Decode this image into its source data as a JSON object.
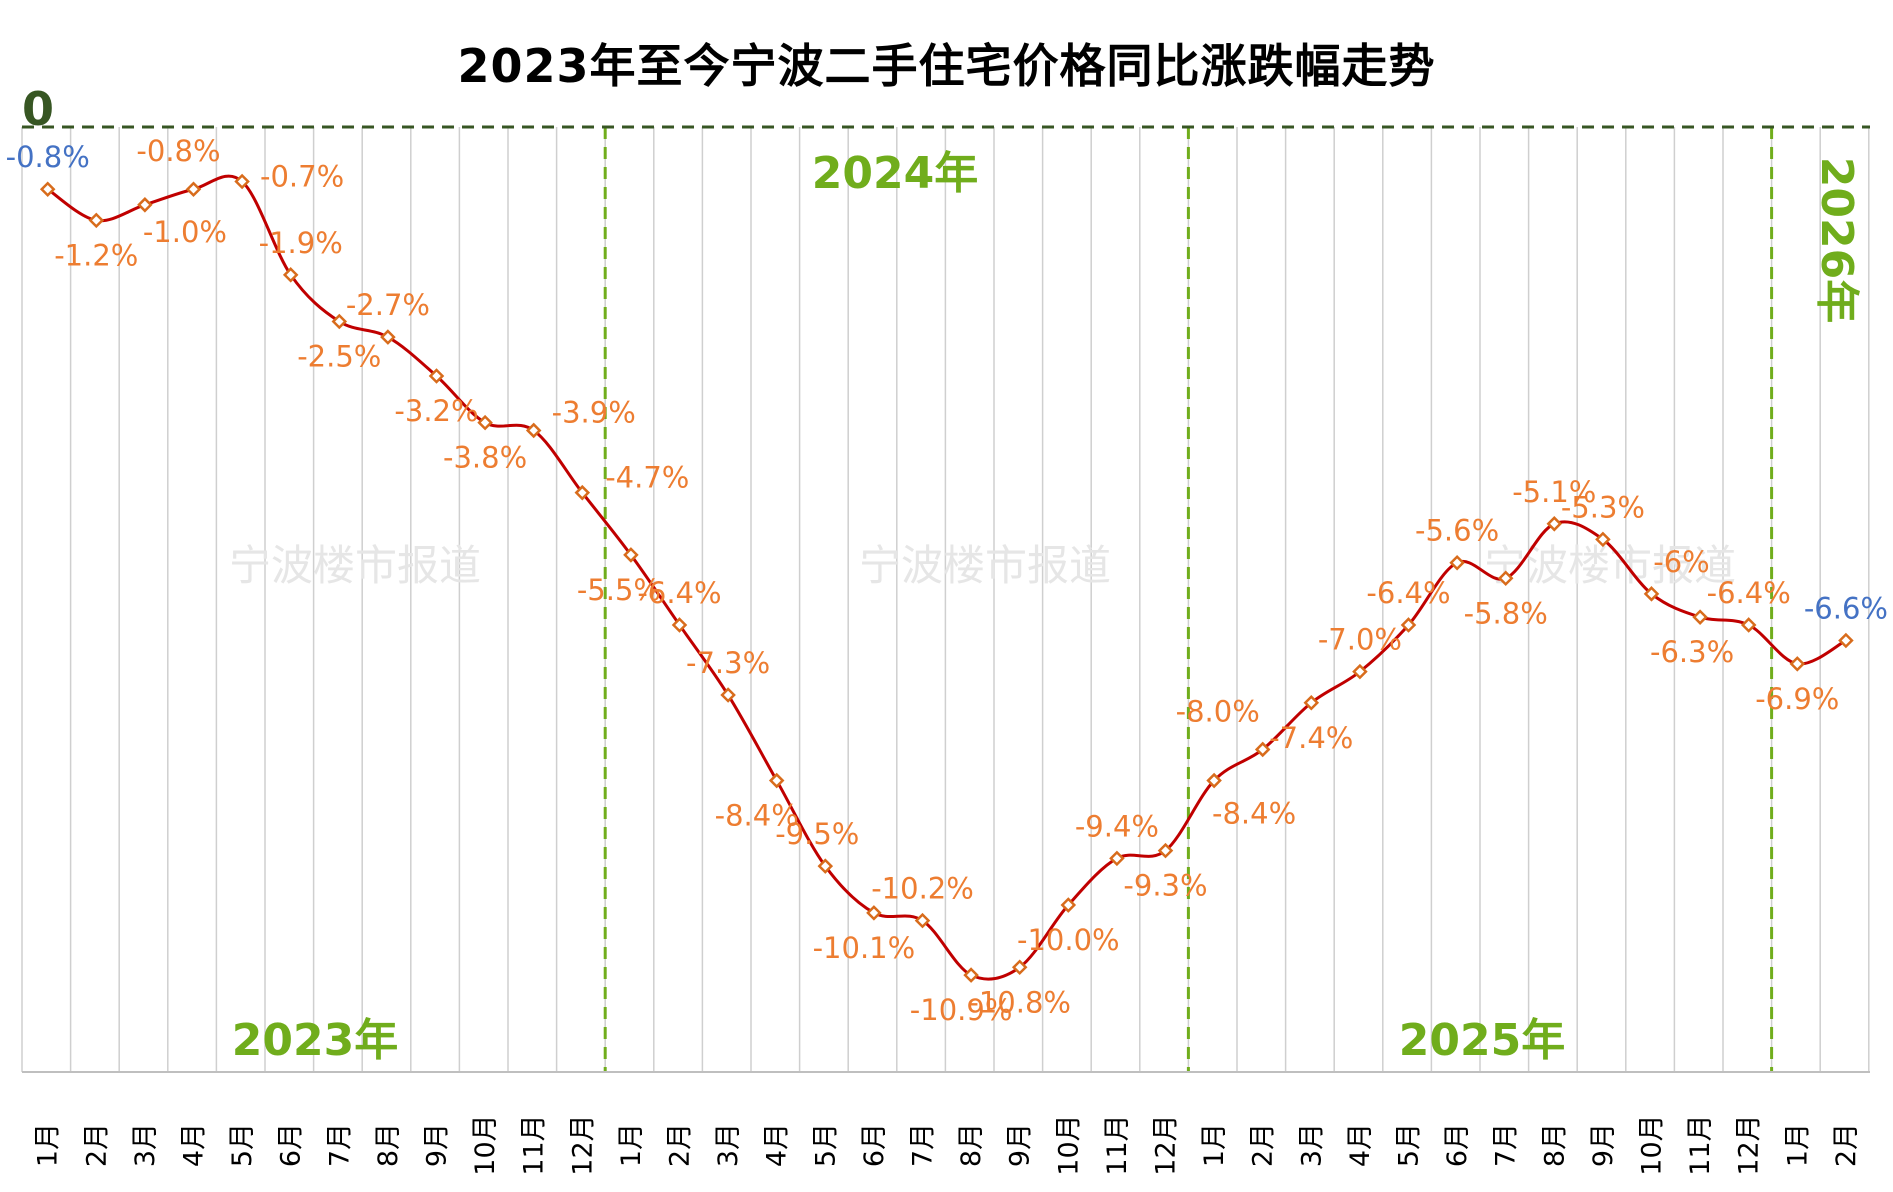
{
  "title": "2023年至今宁波二手住宅价格同比涨跌幅走势",
  "zero_label": "0",
  "watermark": "宁波楼市报道",
  "colors": {
    "line": "#c00000",
    "marker": "#d86c1c",
    "label": "#ed7d31",
    "label_highlight": "#4472c4",
    "year_text": "#70ad1c",
    "zero_text": "#375623",
    "zero_line": "#375623",
    "divider": "#70ad1c",
    "grid": "#cfcfcf"
  },
  "chart_data": {
    "type": "line",
    "title": "2023年至今宁波二手住宅价格同比涨跌幅走势",
    "xlabel": "",
    "ylabel": "",
    "ylim": [
      -12,
      0
    ],
    "grid": "vertical",
    "categories": [
      "1月",
      "2月",
      "3月",
      "4月",
      "5月",
      "6月",
      "7月",
      "8月",
      "9月",
      "10月",
      "11月",
      "12月",
      "1月",
      "2月",
      "3月",
      "4月",
      "5月",
      "6月",
      "7月",
      "8月",
      "9月",
      "10月",
      "11月",
      "12月",
      "1月",
      "2月",
      "3月",
      "4月",
      "5月",
      "6月",
      "7月",
      "8月",
      "9月",
      "10月",
      "11月",
      "12月",
      "1月",
      "2月"
    ],
    "values": [
      -0.8,
      -1.2,
      -1.0,
      -0.8,
      -0.7,
      -1.9,
      -2.5,
      -2.7,
      -3.2,
      -3.8,
      -3.9,
      -4.7,
      -5.5,
      -6.4,
      -7.3,
      -8.4,
      -9.5,
      -10.1,
      -10.2,
      -10.9,
      -10.8,
      -10.0,
      -9.4,
      -9.3,
      -8.4,
      -8.0,
      -7.4,
      -7.0,
      -6.4,
      -5.6,
      -5.8,
      -5.1,
      -5.3,
      -6.0,
      -6.3,
      -6.4,
      -6.9,
      -6.6
    ],
    "data_labels": [
      "-0.8%",
      "-1.2%",
      "-1.0%",
      "-0.8%",
      "-0.7%",
      "-1.9%",
      "-2.5%",
      "-2.7%",
      "-3.2%",
      "-3.8%",
      "-3.9%",
      "-4.7%",
      "-5.5%",
      "-6.4%",
      "-7.3%",
      "-8.4%",
      "-9.5%",
      "-10.1%",
      "-10.2%",
      "-10.9%",
      "-10.8%",
      "-10.0%",
      "-9.4%",
      "-9.3%",
      "-8.4%",
      "-8.0%",
      "-7.4%",
      "-7.0%",
      "-6.4%",
      "-5.6%",
      "-5.8%",
      "-5.1%",
      "-5.3%",
      "-6%",
      "-6.3%",
      "-6.4%",
      "-6.9%",
      "-6.6%"
    ],
    "highlight_points": [
      0,
      37
    ],
    "year_labels": [
      "2023年",
      "2024年",
      "2025年",
      "2026年"
    ]
  }
}
